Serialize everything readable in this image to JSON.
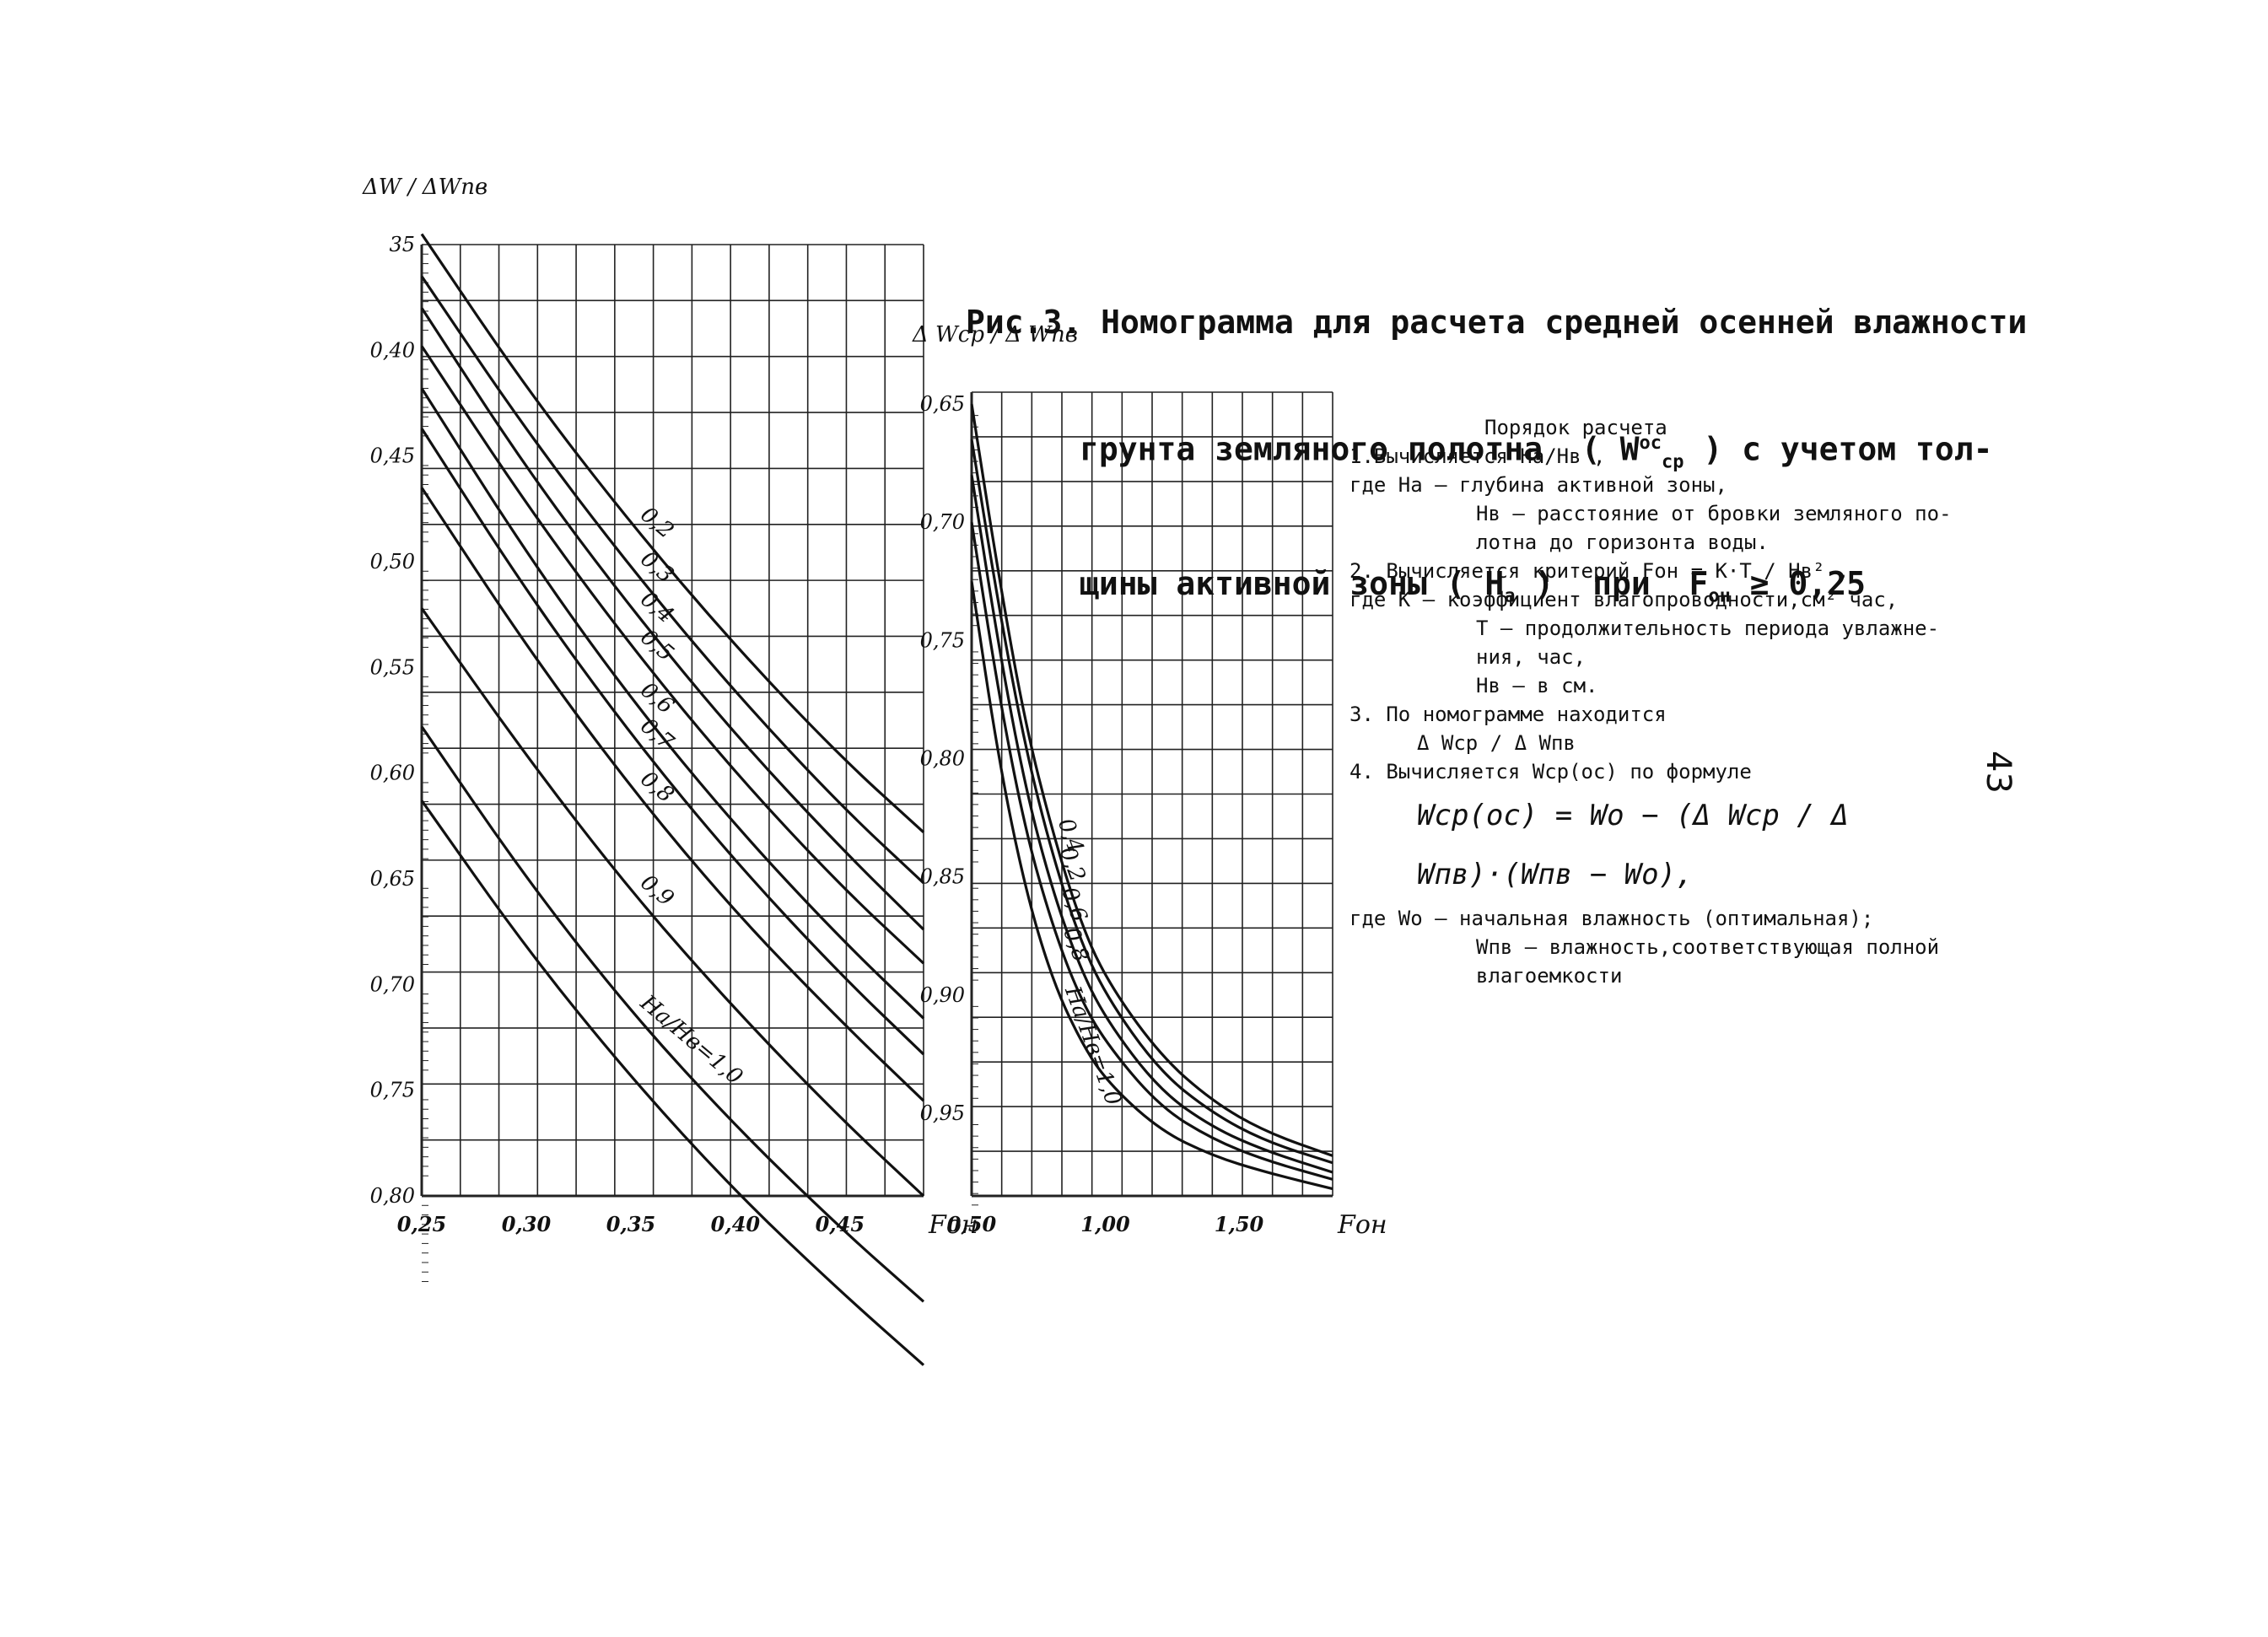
{
  "title": {
    "lines": [
      "Рис.3. Номограмма для расчета средней осенней влажности",
      "грунта земляного полотна  ( W",
      "щины активной зоны ( H"
    ],
    "line2_sup": "ос",
    "line2_sub": "ср",
    "line2_tail": " ) с учетом тол-",
    "line3_sub": "а",
    "line3_tail": " )  при  F",
    "line3_sub2": "он",
    "line3_end": " ≥ 0,25"
  },
  "procedure": {
    "heading": "Порядок расчета",
    "step1": "1.Вычисляется  Hа/Hв ,",
    "def1a": "где  Hа – глубина активной зоны,",
    "def1b": "Hв – расстояние от бровки земляного по-",
    "def1c": "лотна до горизонта воды.",
    "step2": "2. Вычисляется критерий  Fон = К·T / Hв² ,",
    "def2a": "где  К – коэффициент влагопроводности,см² час,",
    "def2b": "T – продолжительность периода увлажне-",
    "def2c": "ния, час,",
    "def2d": "Hв – в см.",
    "step3": "3. По номограмме находится",
    "step3f": "Δ Wср / Δ Wпв",
    "step4": "4. Вычисляется  Wср(ос)  по формуле",
    "formula": "Wср(ос) = Wо − (Δ Wср / Δ Wпв)·(Wпв − Wо),",
    "def4a": "где  Wо – начальная влажность (оптимальная);",
    "def4b": "Wпв – влажность,соответствующая полной",
    "def4c": "влагоемкости"
  },
  "page_number": "43",
  "chart_data": [
    {
      "type": "line",
      "title": "",
      "xlabel": "Fон",
      "ylabel": "ΔW / ΔWпв",
      "xlim": [
        0.25,
        0.49
      ],
      "ylim_top_to_bottom": [
        0.35,
        0.8
      ],
      "y_axis_inverted": true,
      "x_ticks": [
        "0,25",
        "0,30",
        "0,35",
        "0,40",
        "0,45"
      ],
      "x_tick_values": [
        0.25,
        0.3,
        0.35,
        0.4,
        0.45
      ],
      "y_ticks": [
        "35",
        "0,40",
        "0,45",
        "0,50",
        "0,55",
        "0,60",
        "0,65",
        "0,70",
        "0,75",
        "0,80"
      ],
      "y_tick_values": [
        0.35,
        0.4,
        0.45,
        0.5,
        0.55,
        0.6,
        0.65,
        0.7,
        0.75,
        0.8
      ],
      "grid": true,
      "curve_param_label": "Hа/Hв",
      "series": [
        {
          "name": "0,2",
          "points": [
            [
              0.25,
              0.345
            ],
            [
              0.3,
              0.418
            ],
            [
              0.35,
              0.482
            ],
            [
              0.4,
              0.54
            ],
            [
              0.45,
              0.592
            ],
            [
              0.49,
              0.628
            ]
          ]
        },
        {
          "name": "0,3",
          "points": [
            [
              0.25,
              0.365
            ],
            [
              0.3,
              0.438
            ],
            [
              0.35,
              0.503
            ],
            [
              0.4,
              0.562
            ],
            [
              0.45,
              0.615
            ],
            [
              0.49,
              0.652
            ]
          ]
        },
        {
          "name": "0,4",
          "points": [
            [
              0.25,
              0.38
            ],
            [
              0.3,
              0.456
            ],
            [
              0.35,
              0.522
            ],
            [
              0.4,
              0.582
            ],
            [
              0.45,
              0.635
            ],
            [
              0.49,
              0.674
            ]
          ]
        },
        {
          "name": "0,5",
          "points": [
            [
              0.25,
              0.398
            ],
            [
              0.3,
              0.473
            ],
            [
              0.35,
              0.54
            ],
            [
              0.4,
              0.6
            ],
            [
              0.45,
              0.653
            ],
            [
              0.49,
              0.69
            ]
          ]
        },
        {
          "name": "0,6",
          "points": [
            [
              0.25,
              0.418
            ],
            [
              0.3,
              0.496
            ],
            [
              0.35,
              0.565
            ],
            [
              0.4,
              0.625
            ],
            [
              0.45,
              0.678
            ],
            [
              0.49,
              0.716
            ]
          ]
        },
        {
          "name": "0,7",
          "points": [
            [
              0.25,
              0.437
            ],
            [
              0.3,
              0.514
            ],
            [
              0.35,
              0.582
            ],
            [
              0.4,
              0.642
            ],
            [
              0.45,
              0.695
            ],
            [
              0.49,
              0.733
            ]
          ]
        },
        {
          "name": "0,8",
          "points": [
            [
              0.25,
              0.465
            ],
            [
              0.3,
              0.54
            ],
            [
              0.35,
              0.607
            ],
            [
              0.4,
              0.666
            ],
            [
              0.45,
              0.717
            ],
            [
              0.49,
              0.755
            ]
          ]
        },
        {
          "name": "0,9",
          "points": [
            [
              0.25,
              0.522
            ],
            [
              0.3,
              0.592
            ],
            [
              0.35,
              0.656
            ],
            [
              0.4,
              0.712
            ],
            [
              0.45,
              0.763
            ],
            [
              0.49,
              0.8
            ]
          ]
        },
        {
          "name": "Hа/Hв=1,0",
          "points": [
            [
              0.25,
              0.578
            ],
            [
              0.3,
              0.65
            ],
            [
              0.35,
              0.713
            ],
            [
              0.4,
              0.767
            ],
            [
              0.45,
              0.815
            ],
            [
              0.49,
              0.85
            ]
          ]
        },
        {
          "name": "",
          "points": [
            [
              0.25,
              0.613
            ],
            [
              0.3,
              0.683
            ],
            [
              0.35,
              0.744
            ],
            [
              0.4,
              0.798
            ],
            [
              0.45,
              0.845
            ],
            [
              0.49,
              0.88
            ]
          ]
        }
      ]
    },
    {
      "type": "line",
      "title": "",
      "xlabel": "Fон",
      "ylabel": "Δ Wср / Δ Wпв",
      "xlim": [
        0.5,
        1.85
      ],
      "ylim_top_to_bottom": [
        0.645,
        0.985
      ],
      "y_axis_inverted": true,
      "x_ticks": [
        "0,50",
        "1,00",
        "1,50"
      ],
      "x_tick_values": [
        0.5,
        1.0,
        1.5
      ],
      "y_ticks": [
        "0,65",
        "0,70",
        "0,75",
        "0,80",
        "0,85",
        "0,90",
        "0,95"
      ],
      "y_tick_values": [
        0.65,
        0.7,
        0.75,
        0.8,
        0.85,
        0.9,
        0.95
      ],
      "grid": true,
      "curve_param_label": "Hа/Hв",
      "series": [
        {
          "name": "0,4",
          "points": [
            [
              0.5,
              0.65
            ],
            [
              0.6,
              0.722
            ],
            [
              0.7,
              0.785
            ],
            [
              0.8,
              0.83
            ],
            [
              0.9,
              0.867
            ],
            [
              1.0,
              0.893
            ],
            [
              1.2,
              0.925
            ],
            [
              1.4,
              0.945
            ],
            [
              1.6,
              0.958
            ],
            [
              1.85,
              0.968
            ]
          ]
        },
        {
          "name": "0,2",
          "points": [
            [
              0.5,
              0.665
            ],
            [
              0.6,
              0.735
            ],
            [
              0.7,
              0.795
            ],
            [
              0.8,
              0.84
            ],
            [
              0.9,
              0.875
            ],
            [
              1.0,
              0.9
            ],
            [
              1.2,
              0.932
            ],
            [
              1.4,
              0.95
            ],
            [
              1.6,
              0.962
            ],
            [
              1.85,
              0.971
            ]
          ]
        },
        {
          "name": "0,6",
          "points": [
            [
              0.5,
              0.68
            ],
            [
              0.6,
              0.752
            ],
            [
              0.7,
              0.812
            ],
            [
              0.8,
              0.855
            ],
            [
              0.9,
              0.887
            ],
            [
              1.0,
              0.91
            ],
            [
              1.2,
              0.94
            ],
            [
              1.4,
              0.956
            ],
            [
              1.6,
              0.966
            ],
            [
              1.85,
              0.975
            ]
          ]
        },
        {
          "name": "0,8",
          "points": [
            [
              0.5,
              0.7
            ],
            [
              0.6,
              0.772
            ],
            [
              0.7,
              0.83
            ],
            [
              0.8,
              0.87
            ],
            [
              0.9,
              0.9
            ],
            [
              1.0,
              0.92
            ],
            [
              1.2,
              0.947
            ],
            [
              1.4,
              0.961
            ],
            [
              1.6,
              0.97
            ],
            [
              1.85,
              0.978
            ]
          ]
        },
        {
          "name": "Hа/Hв=1,0",
          "points": [
            [
              0.5,
              0.725
            ],
            [
              0.6,
              0.8
            ],
            [
              0.7,
              0.855
            ],
            [
              0.8,
              0.893
            ],
            [
              0.9,
              0.918
            ],
            [
              1.0,
              0.936
            ],
            [
              1.2,
              0.957
            ],
            [
              1.4,
              0.968
            ],
            [
              1.6,
              0.975
            ],
            [
              1.85,
              0.982
            ]
          ]
        }
      ]
    }
  ]
}
